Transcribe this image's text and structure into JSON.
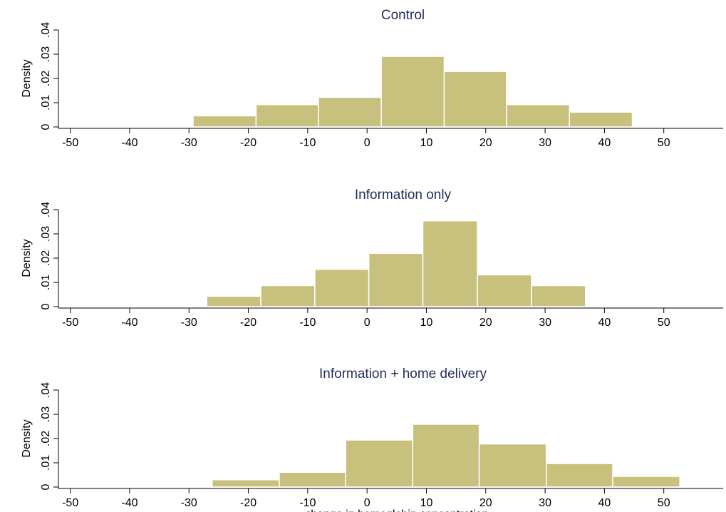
{
  "chart_data": [
    {
      "type": "histogram",
      "title": "Control",
      "ylabel": "Density",
      "xlabel": "",
      "xlim": [
        -52,
        60
      ],
      "ylim": [
        0,
        0.04
      ],
      "xticks": [
        "-50",
        "-40",
        "-30",
        "-20",
        "-10",
        "0",
        "10",
        "20",
        "30",
        "40",
        "50"
      ],
      "yticks": [
        "0",
        ".01",
        ".02",
        ".03",
        ".04"
      ],
      "bins": [
        {
          "start": -29.3,
          "end": -18.7,
          "density": 0.0046
        },
        {
          "start": -18.7,
          "end": -8.2,
          "density": 0.0092
        },
        {
          "start": -8.2,
          "end": 2.4,
          "density": 0.0122
        },
        {
          "start": 2.4,
          "end": 13.0,
          "density": 0.0291
        },
        {
          "start": 13.0,
          "end": 23.5,
          "density": 0.0229
        },
        {
          "start": 23.5,
          "end": 34.1,
          "density": 0.0092
        },
        {
          "start": 34.1,
          "end": 44.7,
          "density": 0.0061
        }
      ],
      "bar_color": "#c8c17e",
      "grid": false
    },
    {
      "type": "histogram",
      "title": "Information only",
      "ylabel": "Density",
      "xlabel": "",
      "xlim": [
        -52,
        60
      ],
      "ylim": [
        0,
        0.04
      ],
      "xticks": [
        "-50",
        "-40",
        "-30",
        "-20",
        "-10",
        "0",
        "10",
        "20",
        "30",
        "40",
        "50"
      ],
      "yticks": [
        "0",
        ".01",
        ".02",
        ".03",
        ".04"
      ],
      "bins": [
        {
          "start": -27.0,
          "end": -17.9,
          "density": 0.0043
        },
        {
          "start": -17.9,
          "end": -8.8,
          "density": 0.0087
        },
        {
          "start": -8.8,
          "end": 0.3,
          "density": 0.0154
        },
        {
          "start": 0.3,
          "end": 9.4,
          "density": 0.022
        },
        {
          "start": 9.4,
          "end": 18.6,
          "density": 0.0354
        },
        {
          "start": 18.6,
          "end": 27.7,
          "density": 0.0131
        },
        {
          "start": 27.7,
          "end": 36.8,
          "density": 0.0087
        }
      ],
      "bar_color": "#c8c17e",
      "grid": false
    },
    {
      "type": "histogram",
      "title": "Information + home delivery",
      "ylabel": "Density",
      "xlabel": "change in hemoglobin concentration",
      "xlim": [
        -52,
        60
      ],
      "ylim": [
        0,
        0.04
      ],
      "xticks": [
        "-50",
        "-40",
        "-30",
        "-20",
        "-10",
        "0",
        "10",
        "20",
        "30",
        "40",
        "50"
      ],
      "yticks": [
        "0",
        ".01",
        ".02",
        ".03",
        ".04"
      ],
      "bins": [
        {
          "start": -26.1,
          "end": -14.8,
          "density": 0.003
        },
        {
          "start": -14.8,
          "end": -3.6,
          "density": 0.0061
        },
        {
          "start": -3.6,
          "end": 7.7,
          "density": 0.0194
        },
        {
          "start": 7.7,
          "end": 18.9,
          "density": 0.0259
        },
        {
          "start": 18.9,
          "end": 30.2,
          "density": 0.0178
        },
        {
          "start": 30.2,
          "end": 41.4,
          "density": 0.0097
        },
        {
          "start": 41.4,
          "end": 52.7,
          "density": 0.0044
        }
      ],
      "bar_color": "#c8c17e",
      "grid": false
    }
  ]
}
